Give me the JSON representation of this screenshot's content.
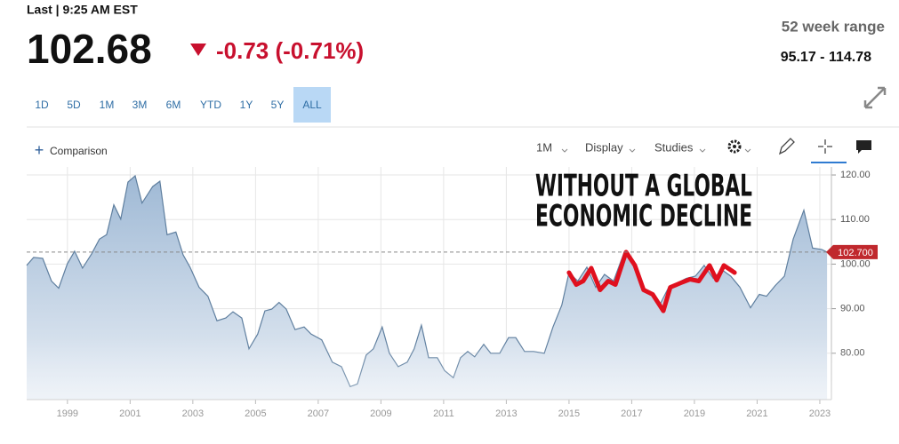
{
  "header": {
    "last": "Last | 9:25 AM EST",
    "price": "102.68",
    "change": "-0.73 (-0.71%)",
    "range_label": "52 week range",
    "range": "95.17 - 114.78"
  },
  "ranges": {
    "items": [
      "1D",
      "5D",
      "1M",
      "3M",
      "6M",
      "YTD",
      "1Y",
      "5Y",
      "ALL"
    ],
    "active": 8
  },
  "toolbar": {
    "comparison": "Comparison",
    "interval": "1M",
    "display": "Display",
    "studies": "Studies"
  },
  "chart_data": {
    "type": "area",
    "xlim": [
      1997.7,
      2023.37
    ],
    "ylim": [
      69.6,
      121.8
    ],
    "xticks": [
      1999,
      2001,
      2003,
      2005,
      2007,
      2009,
      2011,
      2013,
      2015,
      2017,
      2019,
      2021,
      2023
    ],
    "yticks": [
      {
        "value": 80,
        "label": "80.00"
      },
      {
        "value": 90,
        "label": "90.00"
      },
      {
        "value": 100,
        "label": "100.00"
      },
      {
        "value": 110,
        "label": "110.00"
      },
      {
        "value": 120,
        "label": "120.00"
      }
    ],
    "grid": true,
    "price_line": {
      "value": 102.7,
      "label": "102.700",
      "color": "#c0282d"
    },
    "annotation": [
      "WITHOUT A GLOBAL",
      "ECONOMIC DECLINE"
    ],
    "series": [
      {
        "type": "area",
        "color": "#5f7f9f",
        "x": [
          1997.7,
          1997.92,
          1998.21,
          1998.49,
          1998.72,
          1999.0,
          1999.23,
          1999.48,
          1999.77,
          2000.02,
          2000.25,
          2000.48,
          2000.7,
          2000.93,
          2001.16,
          2001.38,
          2001.72,
          2001.95,
          2002.18,
          2002.46,
          2002.69,
          2002.91,
          2003.2,
          2003.48,
          2003.77,
          2004.05,
          2004.28,
          2004.56,
          2004.79,
          2005.07,
          2005.3,
          2005.52,
          2005.75,
          2005.98,
          2006.26,
          2006.55,
          2006.77,
          2007.11,
          2007.45,
          2007.74,
          2008.02,
          2008.25,
          2008.53,
          2008.76,
          2009.04,
          2009.27,
          2009.55,
          2009.84,
          2010.06,
          2010.29,
          2010.52,
          2010.8,
          2011.03,
          2011.31,
          2011.54,
          2011.77,
          2011.99,
          2012.28,
          2012.5,
          2012.79,
          2013.07,
          2013.3,
          2013.58,
          2013.87,
          2014.21,
          2014.49,
          2014.77,
          2015.0,
          2015.28,
          2015.57,
          2015.85,
          2016.13,
          2016.42,
          2016.76,
          2017.04,
          2017.33,
          2017.61,
          2017.89,
          2018.18,
          2018.46,
          2018.74,
          2019.03,
          2019.31,
          2019.6,
          2019.88,
          2020.16,
          2020.45,
          2020.79,
          2021.07,
          2021.3,
          2021.58,
          2021.87,
          2022.15,
          2022.49,
          2022.77,
          2023.06,
          2023.23
        ],
        "values": [
          99.7,
          101.5,
          101.3,
          96.2,
          94.6,
          100.1,
          102.9,
          99.1,
          102.3,
          105.6,
          106.6,
          113.3,
          110.1,
          118.4,
          119.8,
          113.7,
          117.4,
          118.6,
          106.6,
          107.2,
          102.1,
          99.3,
          94.8,
          92.8,
          87.3,
          87.9,
          89.3,
          87.9,
          81.0,
          84.3,
          89.5,
          89.9,
          91.4,
          89.9,
          85.3,
          85.9,
          84.3,
          83.0,
          78.0,
          77.0,
          72.5,
          73.1,
          79.6,
          81.0,
          85.9,
          80.0,
          77.0,
          78.0,
          81.0,
          86.3,
          79.0,
          79.0,
          76.1,
          74.5,
          79.0,
          80.4,
          79.2,
          82.0,
          80.0,
          80.0,
          83.5,
          83.5,
          80.4,
          80.4,
          80.0,
          85.9,
          90.8,
          98.1,
          96.2,
          99.3,
          94.8,
          97.7,
          96.2,
          102.7,
          100.1,
          94.8,
          93.8,
          90.8,
          94.8,
          95.8,
          96.8,
          97.3,
          99.7,
          96.8,
          98.7,
          97.3,
          94.8,
          90.2,
          93.2,
          92.8,
          95.2,
          97.3,
          105.6,
          112.1,
          103.6,
          103.3,
          102.7
        ]
      },
      {
        "type": "line",
        "color": "#e0101e",
        "x": [
          2015.0,
          2015.23,
          2015.45,
          2015.71,
          2015.99,
          2016.25,
          2016.48,
          2016.82,
          2017.1,
          2017.38,
          2017.67,
          2018.01,
          2018.23,
          2018.57,
          2018.86,
          2019.14,
          2019.48,
          2019.71,
          2019.94,
          2020.28
        ],
        "values": [
          98.1,
          95.4,
          96.2,
          99.1,
          94.2,
          96.2,
          95.4,
          102.7,
          99.7,
          94.2,
          93.2,
          89.5,
          94.8,
          95.8,
          96.6,
          96.2,
          99.7,
          96.4,
          99.7,
          98.1
        ]
      }
    ]
  }
}
